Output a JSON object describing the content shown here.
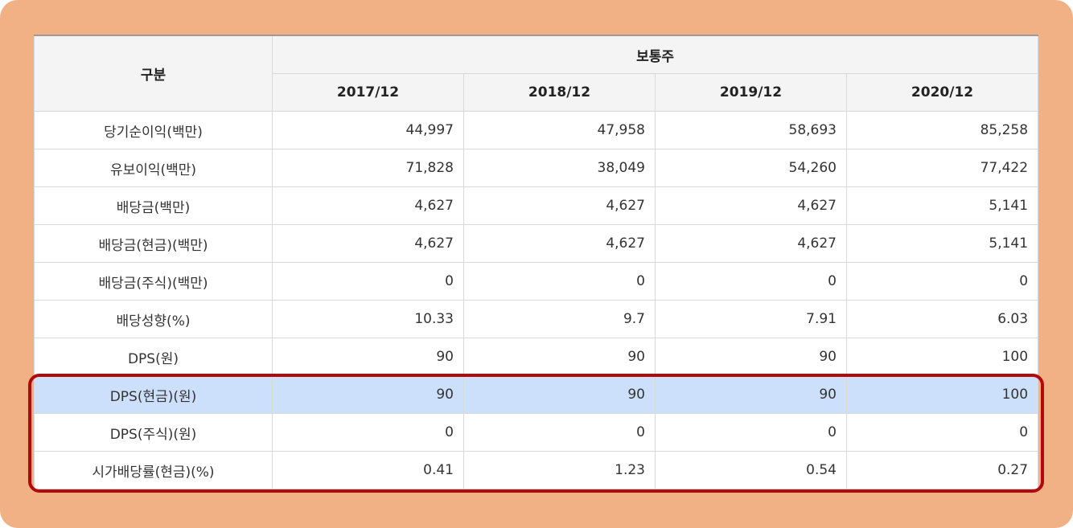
{
  "table": {
    "corner_header": "구분",
    "group_header": "보통주",
    "years": [
      "2017/12",
      "2018/12",
      "2019/12",
      "2020/12"
    ],
    "rows": [
      {
        "label": "당기순이익(백만)",
        "values": [
          "44,997",
          "47,958",
          "58,693",
          "85,258"
        ]
      },
      {
        "label": "유보이익(백만)",
        "values": [
          "71,828",
          "38,049",
          "54,260",
          "77,422"
        ]
      },
      {
        "label": "배당금(백만)",
        "values": [
          "4,627",
          "4,627",
          "4,627",
          "5,141"
        ]
      },
      {
        "label": "배당금(현금)(백만)",
        "values": [
          "4,627",
          "4,627",
          "4,627",
          "5,141"
        ]
      },
      {
        "label": "배당금(주식)(백만)",
        "values": [
          "0",
          "0",
          "0",
          "0"
        ]
      },
      {
        "label": "배당성향(%)",
        "values": [
          "10.33",
          "9.7",
          "7.91",
          "6.03"
        ]
      },
      {
        "label": "DPS(원)",
        "values": [
          "90",
          "90",
          "90",
          "100"
        ]
      },
      {
        "label": "DPS(현금)(원)",
        "values": [
          "90",
          "90",
          "90",
          "100"
        ]
      },
      {
        "label": "DPS(주식)(원)",
        "values": [
          "0",
          "0",
          "0",
          "0"
        ]
      },
      {
        "label": "시가배당률(현금)(%)",
        "values": [
          "0.41",
          "1.23",
          "0.54",
          "0.27"
        ]
      }
    ],
    "highlighted_row": "DPS(현금)(원)"
  },
  "colors": {
    "frame_background": "#f2b185",
    "header_background": "#f4f4f4",
    "highlight_row": "#cde0fb",
    "highlight_outline": "#b00a0a"
  }
}
